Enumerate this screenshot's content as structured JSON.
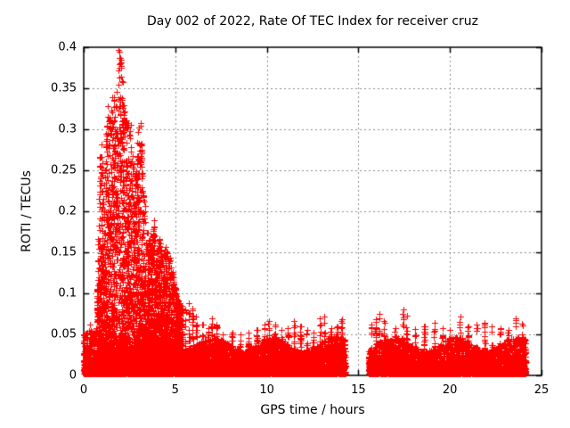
{
  "chart_data": {
    "type": "scatter",
    "title": "Day 002 of 2022, Rate Of TEC Index for receiver cruz",
    "xlabel": "GPS time / hours",
    "ylabel": "ROTI / TECUs",
    "xlim": [
      0,
      25
    ],
    "ylim": [
      0,
      0.4
    ],
    "xticks": [
      0,
      5,
      10,
      15,
      20,
      25
    ],
    "yticks": [
      0,
      0.05,
      0.1,
      0.15,
      0.2,
      0.25,
      0.3,
      0.35,
      0.4
    ],
    "xtick_labels": [
      "0",
      "5",
      "10",
      "15",
      "20",
      "25"
    ],
    "ytick_labels": [
      "0",
      "0.05",
      "0.1",
      "0.15",
      "0.2",
      "0.25",
      "0.3",
      "0.35",
      "0.4"
    ],
    "grid": true,
    "grid_color": "#8a8a8a",
    "marker": {
      "shape": "plus",
      "color": "#ff0000",
      "size": 7
    },
    "features": {
      "background_band": {
        "v_min": 0.0,
        "v_max": 0.05,
        "coverage_hours": [
          [
            0,
            14.3
          ],
          [
            15.55,
            24.15
          ]
        ]
      },
      "storm_burst": {
        "t_start": 0.7,
        "t_end": 5.4,
        "peak_value": 0.392,
        "peak_time": 1.95
      },
      "data_gap_hours": [
        14.3,
        15.55
      ]
    },
    "generator": {
      "seed": 7,
      "band_segments": [
        {
          "t0": 0.0,
          "t1": 14.3,
          "n": 6500
        },
        {
          "t0": 15.55,
          "t1": 24.15,
          "n": 4000
        }
      ],
      "band": {
        "v_min": 0.002,
        "v_range": 0.046,
        "power": 2.4
      },
      "burst": {
        "t0": 0.7,
        "t1": 5.4,
        "n": 3600,
        "power": 1.7,
        "v_floor": 0.012,
        "envelope": [
          [
            0.7,
            0.06
          ],
          [
            0.85,
            0.24
          ],
          [
            0.95,
            0.3
          ],
          [
            1.05,
            0.22
          ],
          [
            1.15,
            0.26
          ],
          [
            1.3,
            0.34
          ],
          [
            1.45,
            0.31
          ],
          [
            1.6,
            0.36
          ],
          [
            1.75,
            0.33
          ],
          [
            1.9,
            0.4
          ],
          [
            2.05,
            0.39
          ],
          [
            2.2,
            0.34
          ],
          [
            2.35,
            0.31
          ],
          [
            2.5,
            0.33
          ],
          [
            2.65,
            0.27
          ],
          [
            2.8,
            0.26
          ],
          [
            2.95,
            0.3
          ],
          [
            3.1,
            0.32
          ],
          [
            3.25,
            0.22
          ],
          [
            3.4,
            0.2
          ],
          [
            3.55,
            0.17
          ],
          [
            3.7,
            0.16
          ],
          [
            3.85,
            0.19
          ],
          [
            4.0,
            0.15
          ],
          [
            4.15,
            0.17
          ],
          [
            4.3,
            0.14
          ],
          [
            4.45,
            0.16
          ],
          [
            4.6,
            0.15
          ],
          [
            4.75,
            0.14
          ],
          [
            4.9,
            0.12
          ],
          [
            5.05,
            0.1
          ],
          [
            5.2,
            0.09
          ],
          [
            5.4,
            0.085
          ]
        ]
      },
      "spikes": [
        [
          0.35,
          0.062
        ],
        [
          5.55,
          0.08
        ],
        [
          5.75,
          0.088
        ],
        [
          5.95,
          0.082
        ],
        [
          6.15,
          0.072
        ],
        [
          6.5,
          0.062
        ],
        [
          6.8,
          0.058
        ],
        [
          7.0,
          0.07
        ],
        [
          7.25,
          0.062
        ],
        [
          7.6,
          0.05
        ],
        [
          8.1,
          0.052
        ],
        [
          8.55,
          0.05
        ],
        [
          9.0,
          0.052
        ],
        [
          9.45,
          0.055
        ],
        [
          9.85,
          0.062
        ],
        [
          10.1,
          0.066
        ],
        [
          10.45,
          0.062
        ],
        [
          10.8,
          0.055
        ],
        [
          11.15,
          0.058
        ],
        [
          11.5,
          0.066
        ],
        [
          11.85,
          0.06
        ],
        [
          12.2,
          0.055
        ],
        [
          12.55,
          0.052
        ],
        [
          12.9,
          0.07
        ],
        [
          13.15,
          0.072
        ],
        [
          13.5,
          0.058
        ],
        [
          13.85,
          0.06
        ],
        [
          14.1,
          0.068
        ],
        [
          15.7,
          0.062
        ],
        [
          15.95,
          0.068
        ],
        [
          16.15,
          0.075
        ],
        [
          16.4,
          0.066
        ],
        [
          17.0,
          0.058
        ],
        [
          17.45,
          0.08
        ],
        [
          17.65,
          0.073
        ],
        [
          18.1,
          0.056
        ],
        [
          18.6,
          0.06
        ],
        [
          19.15,
          0.064
        ],
        [
          19.6,
          0.058
        ],
        [
          20.0,
          0.055
        ],
        [
          20.55,
          0.072
        ],
        [
          21.0,
          0.06
        ],
        [
          21.45,
          0.062
        ],
        [
          21.9,
          0.064
        ],
        [
          22.3,
          0.06
        ],
        [
          22.75,
          0.058
        ],
        [
          23.2,
          0.055
        ],
        [
          23.6,
          0.07
        ],
        [
          23.95,
          0.063
        ]
      ]
    }
  }
}
